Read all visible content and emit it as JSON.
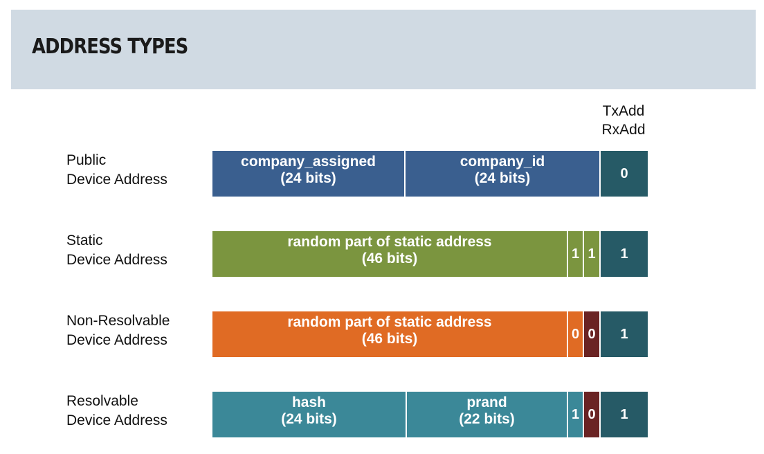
{
  "title": "ADDRESS TYPES",
  "flag_header": {
    "line1": "TxAdd",
    "line2": "RxAdd"
  },
  "colors": {
    "header_band": "#d0dae3",
    "public": "#3a5f8f",
    "static": "#7b953f",
    "non_resolvable": "#e06b24",
    "resolvable": "#3b8898",
    "flag": "#265a66",
    "dark_bit": "#6a2323"
  },
  "rows": [
    {
      "label1": "Public",
      "label2": "Device Address",
      "segments": [
        {
          "name": "company_assigned",
          "bits": "(24 bits)"
        },
        {
          "name": "company_id",
          "bits": "(24 bits)"
        }
      ],
      "type_bits": [],
      "flag": "0"
    },
    {
      "label1": "Static",
      "label2": "Device Address",
      "segments": [
        {
          "name": "random part of static address",
          "bits": "(46 bits)"
        }
      ],
      "type_bits": [
        "1",
        "1"
      ],
      "flag": "1"
    },
    {
      "label1": "Non-Resolvable",
      "label2": "Device Address",
      "segments": [
        {
          "name": "random part of static address",
          "bits": "(46 bits)"
        }
      ],
      "type_bits": [
        "0",
        "0"
      ],
      "flag": "1"
    },
    {
      "label1": "Resolvable",
      "label2": "Device Address",
      "segments": [
        {
          "name": "hash",
          "bits": "(24 bits)"
        },
        {
          "name": "prand",
          "bits": "(22 bits)"
        }
      ],
      "type_bits": [
        "1",
        "0"
      ],
      "flag": "1"
    }
  ]
}
